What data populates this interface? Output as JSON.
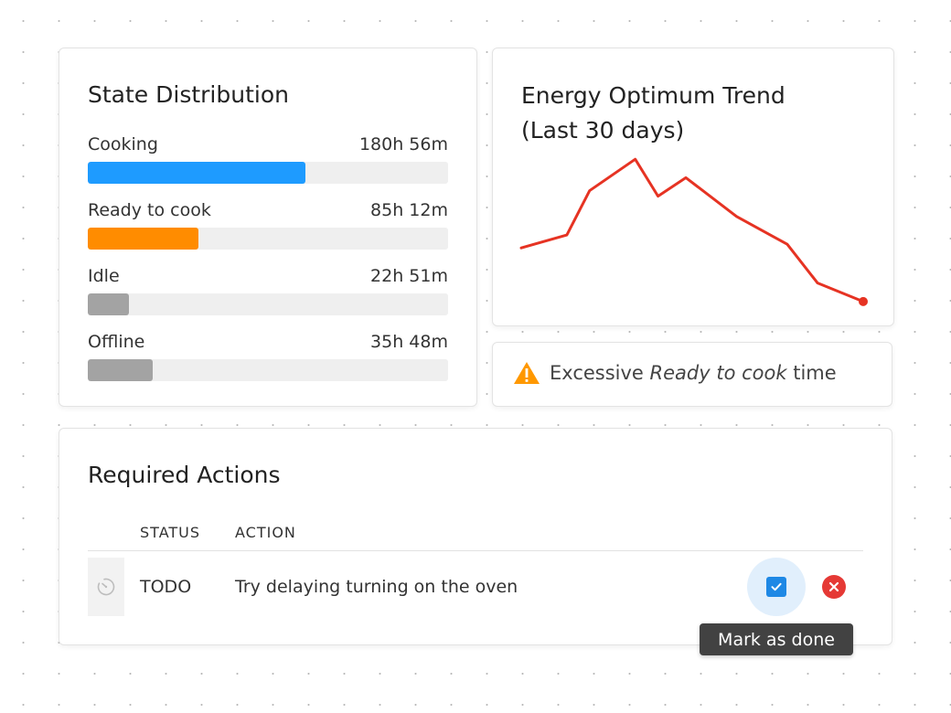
{
  "state_distribution": {
    "title": "State Distribution",
    "states": [
      {
        "label": "Cooking",
        "duration": "180h 56m",
        "color": "#1e9bff",
        "fraction": 0.605
      },
      {
        "label": "Ready to cook",
        "duration": "85h 12m",
        "color": "#ff8c00",
        "fraction": 0.307
      },
      {
        "label": "Idle",
        "duration": "22h 51m",
        "color": "#a3a3a3",
        "fraction": 0.114
      },
      {
        "label": "Offline",
        "duration": "35h 48m",
        "color": "#a3a3a3",
        "fraction": 0.18
      }
    ]
  },
  "trend": {
    "title_line1": "Energy Optimum Trend",
    "title_line2": "(Last 30 days)"
  },
  "chart_data": {
    "type": "line",
    "title": "Energy Optimum Trend (Last 30 days)",
    "xlabel": "",
    "ylabel": "",
    "x": [
      0,
      3.6,
      5.4,
      9,
      10.8,
      13,
      17,
      21,
      23.4,
      27
    ],
    "series": [
      {
        "values": [
          24,
          31,
          55,
          72,
          52,
          62,
          41,
          26,
          5,
          -5
        ],
        "color": "#e63323"
      }
    ],
    "xlim": [
      0,
      27
    ],
    "ylim": [
      -10,
      80
    ],
    "grid": false,
    "axes_visible": false,
    "end_marker": true
  },
  "alert": {
    "icon": "warning-icon",
    "color": "#ff9800",
    "text_before": "Excessive ",
    "text_emph": "Ready to cook",
    "text_after": " time"
  },
  "actions": {
    "title": "Required Actions",
    "columns": [
      "STATUS",
      "ACTION"
    ],
    "rows": [
      {
        "icon": "timer-icon",
        "status": "TODO",
        "action": "Try delaying turning on the oven"
      }
    ],
    "tooltip": "Mark as done"
  }
}
